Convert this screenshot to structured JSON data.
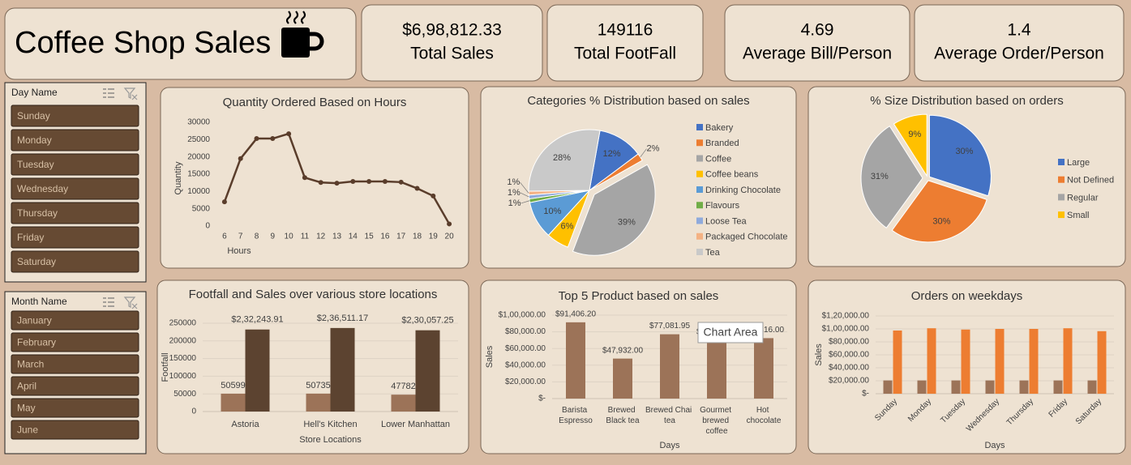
{
  "header": {
    "title": "Coffee Shop Sales"
  },
  "kpis": [
    {
      "value": "$6,98,812.33",
      "label": "Total Sales"
    },
    {
      "value": "149116",
      "label": "Total FootFall"
    },
    {
      "value": "4.69",
      "label": "Average Bill/Person"
    },
    {
      "value": "1.4",
      "label": "Average Order/Person"
    }
  ],
  "slicers": [
    {
      "title": "Day Name",
      "items": [
        "Sunday",
        "Monday",
        "Tuesday",
        "Wednesday",
        "Thursday",
        "Friday",
        "Saturday"
      ]
    },
    {
      "title": "Month Name",
      "items": [
        "January",
        "February",
        "March",
        "April",
        "May",
        "June"
      ]
    }
  ],
  "tooltip": "Chart Area",
  "chart_data": [
    {
      "type": "line",
      "title": "Quantity Ordered Based on Hours",
      "xlabel": "Hours",
      "ylabel": "Quantity",
      "categories": [
        "6",
        "7",
        "8",
        "9",
        "10",
        "11",
        "12",
        "13",
        "14",
        "15",
        "16",
        "17",
        "18",
        "19",
        "20"
      ],
      "values": [
        7000,
        19500,
        25300,
        25300,
        26700,
        14000,
        12600,
        12400,
        12900,
        12900,
        12900,
        12700,
        10900,
        8700,
        600
      ],
      "color": "#5a3d2b",
      "ylim": [
        0,
        30000
      ],
      "yticks": [
        0,
        5000,
        10000,
        15000,
        20000,
        25000,
        30000
      ],
      "grid": false
    },
    {
      "type": "pie",
      "title": "Categories % Distribution based on sales",
      "categories": [
        "Bakery",
        "Branded",
        "Coffee",
        "Coffee beans",
        "Drinking Chocolate",
        "Flavours",
        "Loose Tea",
        "Packaged Chocolate",
        "Tea"
      ],
      "values": [
        12,
        2,
        39,
        6,
        10,
        1,
        1,
        1,
        28
      ],
      "value_labels": [
        "12%",
        "2%",
        "39%",
        "6%",
        "10%",
        "1%",
        "1%",
        "1%",
        "28%"
      ],
      "colors": [
        "#4472c4",
        "#ed7d31",
        "#a5a5a5",
        "#ffc000",
        "#5b9bd5",
        "#70ad47",
        "#8faadc",
        "#f4b183",
        "#c9c9c9"
      ]
    },
    {
      "type": "pie",
      "title": "% Size Distribution based on orders",
      "categories": [
        "Large",
        "Not Defined",
        "Regular",
        "Small"
      ],
      "values": [
        30,
        30,
        31,
        9
      ],
      "value_labels": [
        "30%",
        "30%",
        "31%",
        "9%"
      ],
      "colors": [
        "#4472c4",
        "#ed7d31",
        "#a5a5a5",
        "#ffc000"
      ]
    },
    {
      "type": "bar",
      "title": "Footfall and Sales over various store locations",
      "xlabel": "Store Locations",
      "ylabel": "Footfall",
      "categories": [
        "Astoria",
        "Hell's Kitchen",
        "Lower Manhattan"
      ],
      "series": [
        {
          "color": "#9c7358",
          "values": [
            50599,
            50735,
            47782
          ]
        },
        {
          "color": "#5c4330",
          "values": [
            232243.91,
            236511.17,
            230057.25
          ],
          "value_labels": [
            "$2,32,243.91",
            "$2,36,511.17",
            "$2,30,057.25"
          ]
        }
      ],
      "ylim": [
        0,
        250000
      ],
      "yticks": [
        0,
        50000,
        100000,
        150000,
        200000,
        250000
      ],
      "grid": true,
      "data_labels": true
    },
    {
      "type": "bar",
      "title": "Top 5 Product based on sales",
      "xlabel": "Days",
      "ylabel": "Sales",
      "categories": [
        "Barista Espresso",
        "Brewed Black tea",
        "Brewed Chai tea",
        "Gourmet brewed coffee",
        "Hot chocolate"
      ],
      "series": [
        {
          "color": "#9c7358",
          "values": [
            91406.2,
            47932,
            77081.95,
            70034.6,
            72416
          ],
          "value_labels": [
            "$91,406.20",
            "$47,932.00",
            "$77,081.95",
            "$70,034.60",
            "$72,416.00"
          ]
        }
      ],
      "ylim": [
        0,
        100000
      ],
      "yticks": [
        {
          "value": 0,
          "label": "$-"
        },
        {
          "value": 20000,
          "label": "$20,000.00"
        },
        {
          "value": 40000,
          "label": "$40,000.00"
        },
        {
          "value": 60000,
          "label": "$60,000.00"
        },
        {
          "value": 80000,
          "label": "$80,000.00"
        },
        {
          "value": 100000,
          "label": "$1,00,000.00"
        }
      ],
      "grid": true,
      "data_labels": true
    },
    {
      "type": "bar",
      "title": "Orders on weekdays",
      "xlabel": "Days",
      "ylabel": "Sales",
      "categories": [
        "Sunday",
        "Monday",
        "Tuesday",
        "Wednesday",
        "Thursday",
        "Friday",
        "Saturday"
      ],
      "series": [
        {
          "color": "#9c7358",
          "values": [
            20500,
            20500,
            20500,
            20500,
            20500,
            20500,
            20500
          ]
        },
        {
          "color": "#ed7d31",
          "values": [
            97500,
            101000,
            99000,
            100000,
            100000,
            101000,
            96500
          ]
        }
      ],
      "ylim": [
        0,
        120000
      ],
      "yticks": [
        {
          "value": 0,
          "label": "$-"
        },
        {
          "value": 20000,
          "label": "$20,000.00"
        },
        {
          "value": 40000,
          "label": "$40,000.00"
        },
        {
          "value": 60000,
          "label": "$60,000.00"
        },
        {
          "value": 80000,
          "label": "$80,000.00"
        },
        {
          "value": 100000,
          "label": "$1,00,000.00"
        },
        {
          "value": 120000,
          "label": "$1,20,000.00"
        }
      ],
      "grid": true,
      "data_labels": false
    }
  ]
}
